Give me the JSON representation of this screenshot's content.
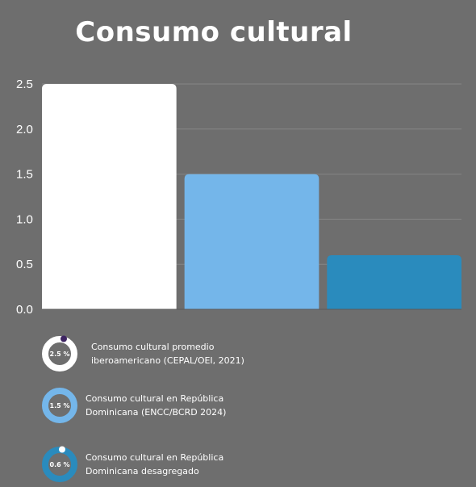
{
  "title": "Consumo cultural",
  "chart_data": {
    "type": "bar",
    "categories": [
      "Consumo cultural promedio iberoamericano (CEPAL/OEI, 2021)",
      "Consumo cultural en República Dominicana (ENCC/BCRD 2024)",
      "Consumo cultural en República Dominicana desagregado"
    ],
    "values": [
      2.5,
      1.5,
      0.6
    ],
    "ylim": [
      0,
      2.5
    ],
    "yticks": [
      "0.0",
      "0.5",
      "1.0",
      "1.5",
      "2.0",
      "2.5"
    ],
    "grid": true,
    "colors": [
      "#ffffff",
      "#74b6ea",
      "#2a8bbd"
    ],
    "legend_position": "bottom-left"
  },
  "legend": [
    {
      "pct": "2.5 %",
      "line1": "Consumo cultural promedio",
      "line2": "iberoamericano (CEPAL/OEI, 2021)",
      "ring_color": "#ffffff",
      "dot_color": "#3e2562"
    },
    {
      "pct": "1.5 %",
      "line1": "Consumo cultural en República",
      "line2": "Dominicana (ENCC/BCRD 2024)",
      "ring_color": "#74b6ea",
      "dot_color": ""
    },
    {
      "pct": "0.6 %",
      "line1": "Consumo cultural en República",
      "line2": "Dominicana desagregado",
      "ring_color": "#2a8bbd",
      "dot_color": "#ffffff"
    }
  ]
}
